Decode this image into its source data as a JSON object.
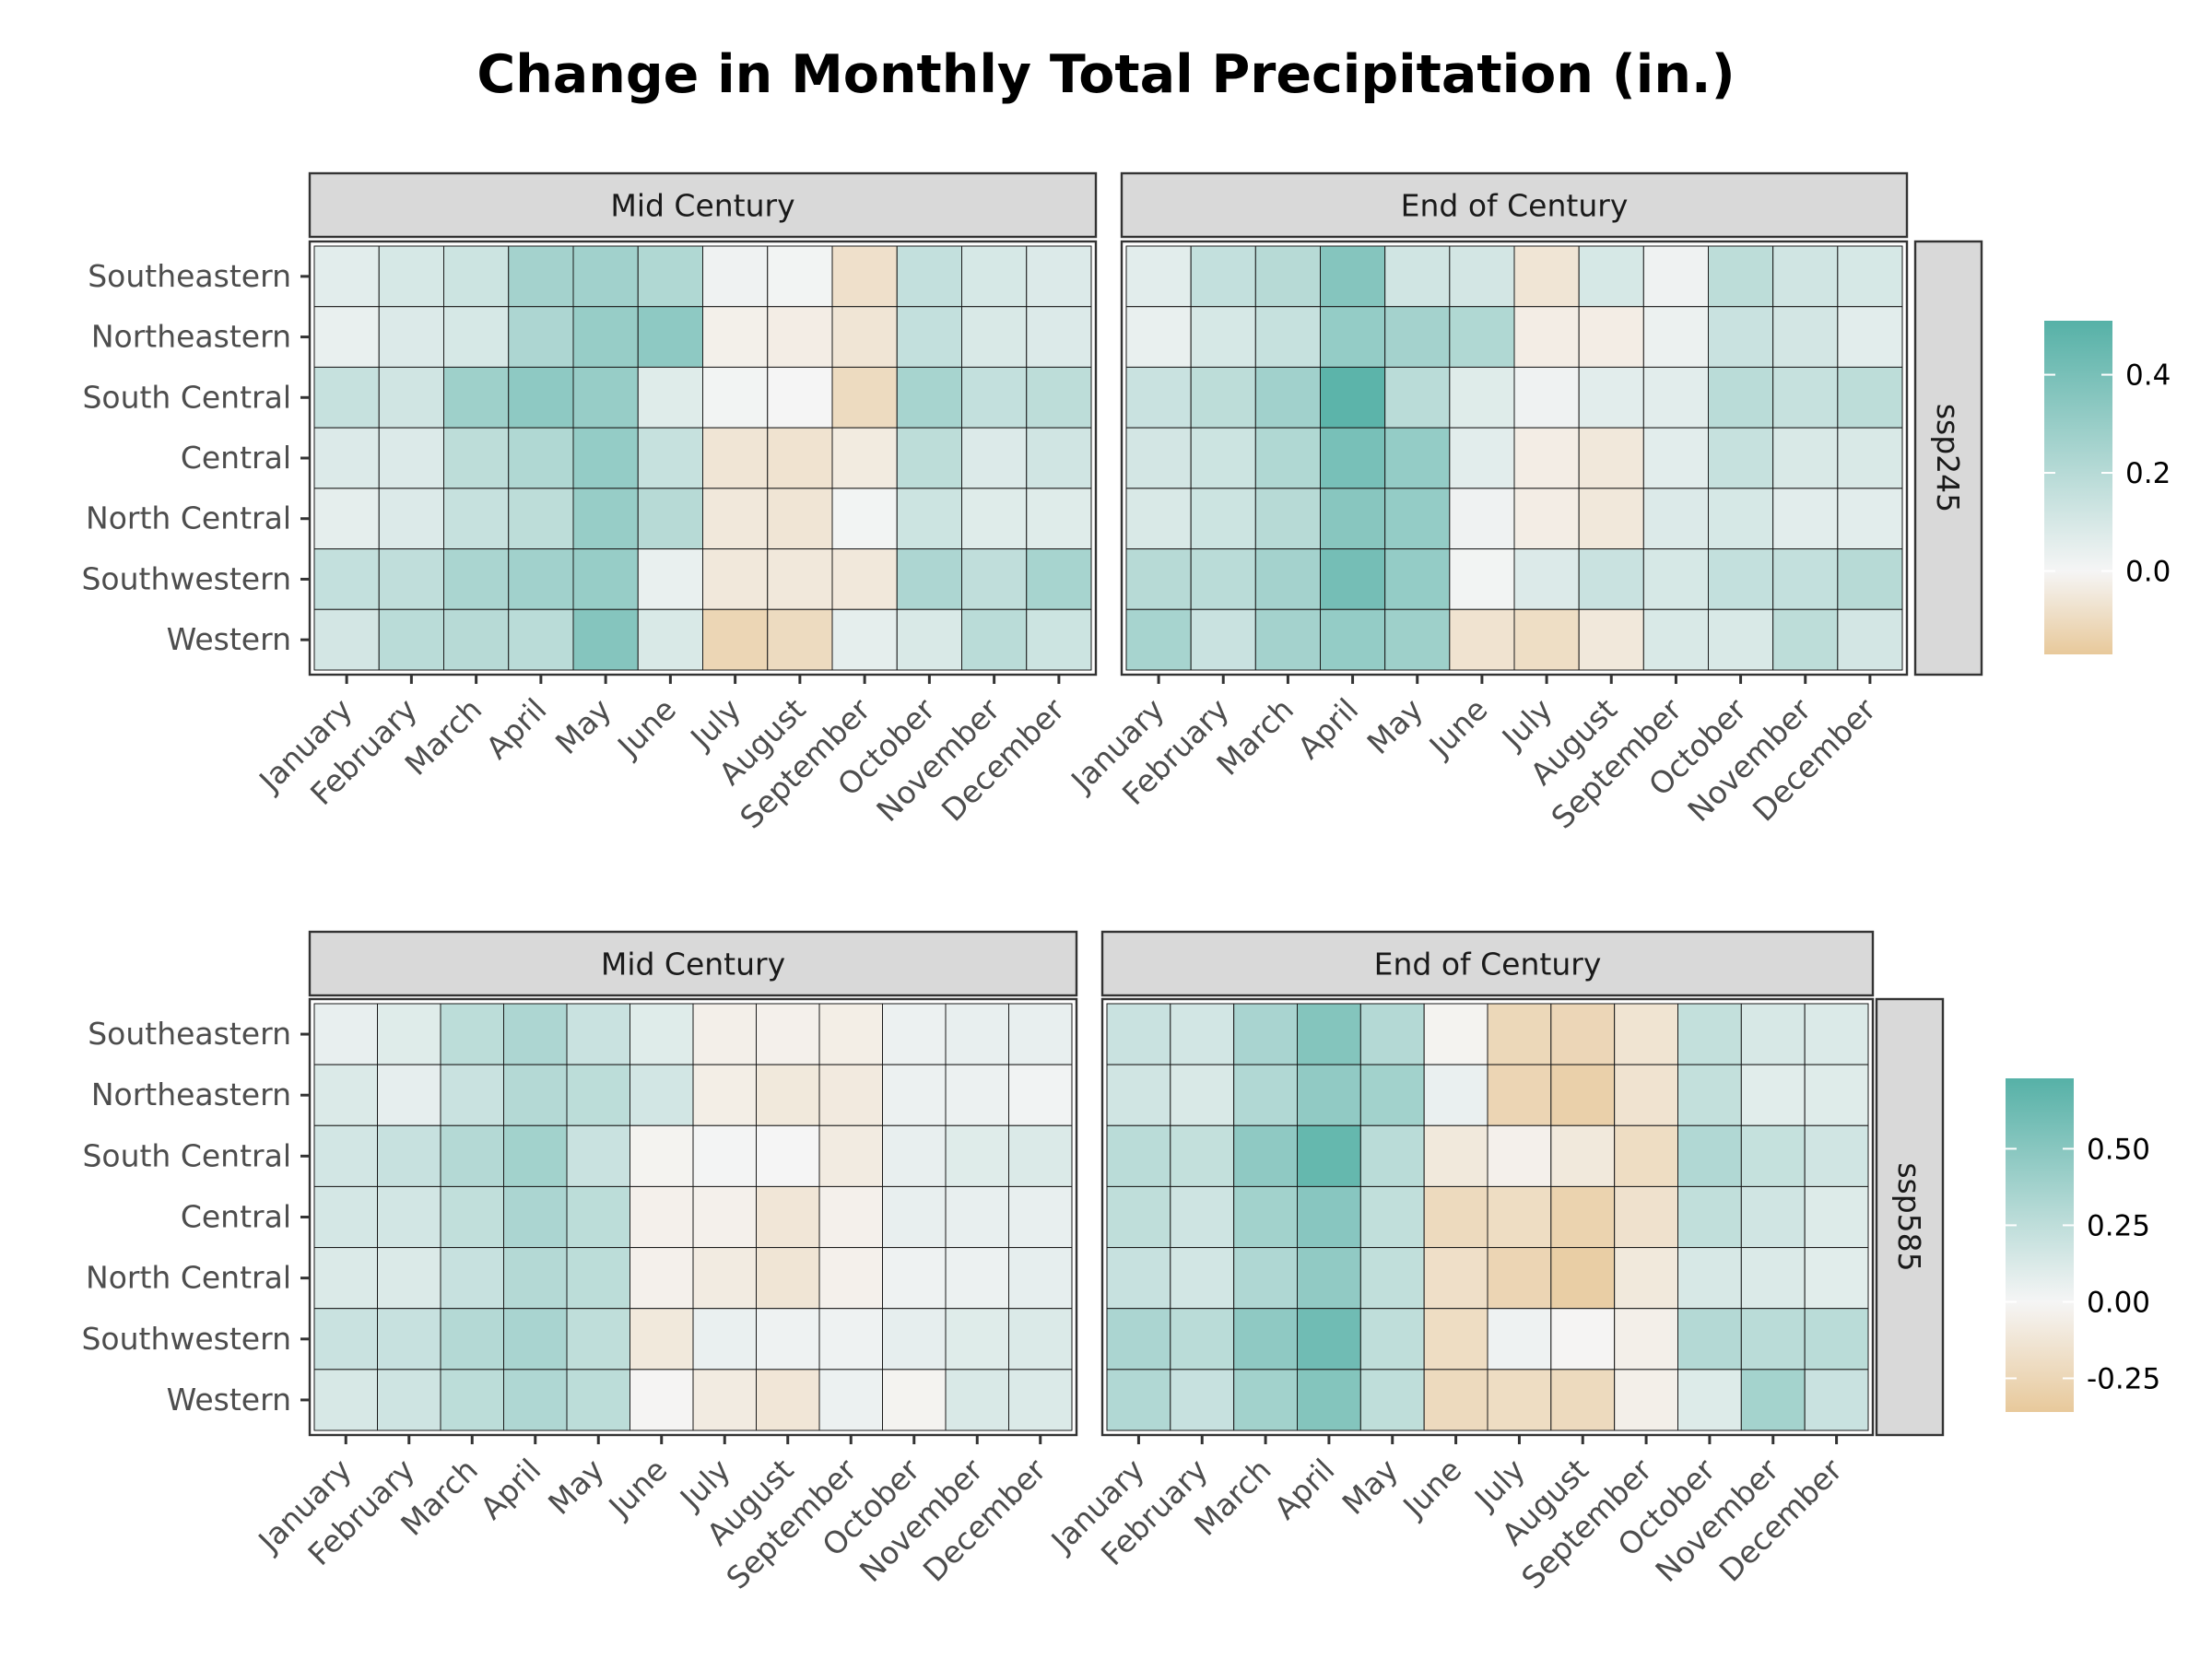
{
  "chart_data": {
    "type": "heatmap",
    "title": "Change in Monthly Total Precipitation (in.)",
    "months": [
      "January",
      "February",
      "March",
      "April",
      "May",
      "June",
      "July",
      "August",
      "September",
      "October",
      "November",
      "December"
    ],
    "regions": [
      "Southeastern",
      "Northeastern",
      "South Central",
      "Central",
      "North Central",
      "Southwestern",
      "Western"
    ],
    "colors": {
      "low": "#e8c99b",
      "mid": "#f5f5f5",
      "high": "#56b1a7"
    },
    "grid": false,
    "rows": [
      {
        "label": "ssp245",
        "legend": {
          "min": -0.17,
          "max": 0.51,
          "ticks": [
            0.4,
            0.2,
            0.0
          ],
          "tick_labels": [
            "0.4",
            "0.2",
            "0.0"
          ]
        },
        "panels": [
          {
            "label": "Mid Century",
            "values": [
              [
                0.06,
                0.1,
                0.13,
                0.26,
                0.27,
                0.22,
                0.02,
                0.01,
                -0.08,
                0.16,
                0.1,
                0.08
              ],
              [
                0.04,
                0.08,
                0.1,
                0.23,
                0.3,
                0.33,
                -0.02,
                -0.03,
                -0.06,
                0.16,
                0.09,
                0.08
              ],
              [
                0.15,
                0.12,
                0.28,
                0.33,
                0.3,
                0.07,
                0.01,
                0.0,
                -0.1,
                0.25,
                0.16,
                0.18
              ],
              [
                0.08,
                0.08,
                0.18,
                0.22,
                0.31,
                0.15,
                -0.06,
                -0.07,
                -0.04,
                0.18,
                0.08,
                0.12
              ],
              [
                0.05,
                0.08,
                0.15,
                0.18,
                0.3,
                0.2,
                -0.05,
                -0.06,
                0.01,
                0.13,
                0.07,
                0.07
              ],
              [
                0.16,
                0.17,
                0.24,
                0.27,
                0.3,
                0.04,
                -0.05,
                -0.05,
                -0.05,
                0.23,
                0.17,
                0.25
              ],
              [
                0.11,
                0.19,
                0.2,
                0.19,
                0.36,
                0.09,
                -0.12,
                -0.1,
                0.05,
                0.09,
                0.19,
                0.13
              ]
            ]
          },
          {
            "label": "End of Century",
            "values": [
              [
                0.06,
                0.16,
                0.2,
                0.36,
                0.12,
                0.11,
                -0.06,
                0.1,
                0.02,
                0.18,
                0.12,
                0.1
              ],
              [
                0.04,
                0.1,
                0.15,
                0.31,
                0.26,
                0.22,
                -0.03,
                -0.03,
                0.03,
                0.14,
                0.11,
                0.06
              ],
              [
                0.14,
                0.18,
                0.27,
                0.49,
                0.19,
                0.07,
                0.02,
                0.06,
                0.06,
                0.19,
                0.15,
                0.18
              ],
              [
                0.11,
                0.13,
                0.22,
                0.4,
                0.31,
                0.06,
                -0.03,
                -0.05,
                0.06,
                0.15,
                0.09,
                0.09
              ],
              [
                0.09,
                0.13,
                0.2,
                0.35,
                0.31,
                0.02,
                -0.03,
                -0.05,
                0.08,
                0.1,
                0.06,
                0.06
              ],
              [
                0.2,
                0.19,
                0.26,
                0.41,
                0.31,
                0.01,
                0.08,
                0.14,
                0.1,
                0.16,
                0.16,
                0.2
              ],
              [
                0.25,
                0.14,
                0.26,
                0.31,
                0.28,
                -0.07,
                -0.09,
                -0.05,
                0.09,
                0.09,
                0.18,
                0.11
              ]
            ]
          }
        ]
      },
      {
        "label": "ssp585",
        "legend": {
          "min": -0.36,
          "max": 0.73,
          "ticks": [
            0.5,
            0.25,
            0.0,
            -0.25
          ],
          "tick_labels": [
            "0.50",
            "0.25",
            "0.00",
            "-0.25"
          ]
        },
        "panels": [
          {
            "label": "Mid Century",
            "values": [
              [
                0.06,
                0.1,
                0.26,
                0.33,
                0.2,
                0.1,
                -0.05,
                -0.04,
                -0.06,
                0.04,
                0.06,
                0.06
              ],
              [
                0.12,
                0.07,
                0.2,
                0.3,
                0.26,
                0.16,
                -0.06,
                -0.1,
                -0.09,
                0.04,
                0.04,
                0.02
              ],
              [
                0.16,
                0.21,
                0.3,
                0.38,
                0.2,
                -0.02,
                0.01,
                0.0,
                -0.08,
                0.06,
                0.1,
                0.12
              ],
              [
                0.15,
                0.16,
                0.24,
                0.34,
                0.26,
                -0.04,
                -0.04,
                -0.12,
                -0.04,
                0.06,
                0.06,
                0.06
              ],
              [
                0.12,
                0.12,
                0.21,
                0.3,
                0.26,
                -0.04,
                -0.08,
                -0.13,
                -0.04,
                0.03,
                0.04,
                0.07
              ],
              [
                0.2,
                0.21,
                0.3,
                0.35,
                0.25,
                -0.1,
                0.05,
                0.03,
                0.03,
                0.07,
                0.1,
                0.12
              ],
              [
                0.14,
                0.18,
                0.26,
                0.32,
                0.26,
                -0.01,
                -0.08,
                -0.12,
                0.04,
                -0.02,
                0.13,
                0.12
              ]
            ]
          },
          {
            "label": "End of Century",
            "values": [
              [
                0.2,
                0.16,
                0.35,
                0.52,
                0.3,
                -0.02,
                -0.24,
                -0.25,
                -0.14,
                0.23,
                0.14,
                0.12
              ],
              [
                0.17,
                0.13,
                0.31,
                0.46,
                0.38,
                0.05,
                -0.26,
                -0.3,
                -0.15,
                0.23,
                0.09,
                0.1
              ],
              [
                0.27,
                0.23,
                0.47,
                0.66,
                0.27,
                -0.1,
                -0.04,
                -0.1,
                -0.2,
                0.31,
                0.22,
                0.17
              ],
              [
                0.25,
                0.18,
                0.38,
                0.5,
                0.24,
                -0.22,
                -0.2,
                -0.28,
                -0.16,
                0.24,
                0.17,
                0.11
              ],
              [
                0.21,
                0.16,
                0.32,
                0.46,
                0.24,
                -0.18,
                -0.26,
                -0.32,
                -0.1,
                0.14,
                0.12,
                0.09
              ],
              [
                0.34,
                0.27,
                0.47,
                0.61,
                0.25,
                -0.2,
                0.03,
                -0.01,
                -0.05,
                0.3,
                0.27,
                0.27
              ],
              [
                0.31,
                0.21,
                0.38,
                0.52,
                0.25,
                -0.22,
                -0.2,
                -0.22,
                -0.05,
                0.11,
                0.37,
                0.2
              ]
            ]
          }
        ]
      }
    ]
  }
}
